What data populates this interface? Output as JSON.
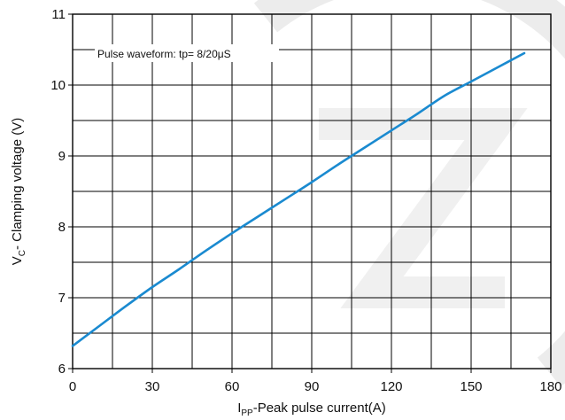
{
  "chart_data": {
    "type": "line",
    "xlabel": {
      "main": "I",
      "sub": "PP",
      "rest": "-Peak pulse current(A)"
    },
    "ylabel": {
      "main": "V",
      "sub": "C",
      "rest": "- Clamping voltage (V)"
    },
    "annotation": "Pulse waveform: tp= 8/20μS",
    "xlim": [
      0,
      180
    ],
    "ylim": [
      6,
      11
    ],
    "x_ticks": [
      "0",
      "30",
      "60",
      "90",
      "120",
      "150",
      "180"
    ],
    "y_ticks": [
      "6",
      "7",
      "8",
      "9",
      "10",
      "11"
    ],
    "x_minor_step": 15,
    "y_minor_step": 0.5,
    "grid": true,
    "line_color": "#1a8ad0",
    "series": [
      {
        "x": [
          0,
          10,
          20,
          30,
          40,
          50,
          60,
          70,
          80,
          90,
          100,
          110,
          120,
          130,
          140,
          150,
          160,
          170
        ],
        "y": [
          6.32,
          6.6,
          6.88,
          7.15,
          7.4,
          7.66,
          7.91,
          8.15,
          8.39,
          8.63,
          8.88,
          9.12,
          9.36,
          9.6,
          9.85,
          10.05,
          10.25,
          10.45
        ]
      }
    ]
  }
}
